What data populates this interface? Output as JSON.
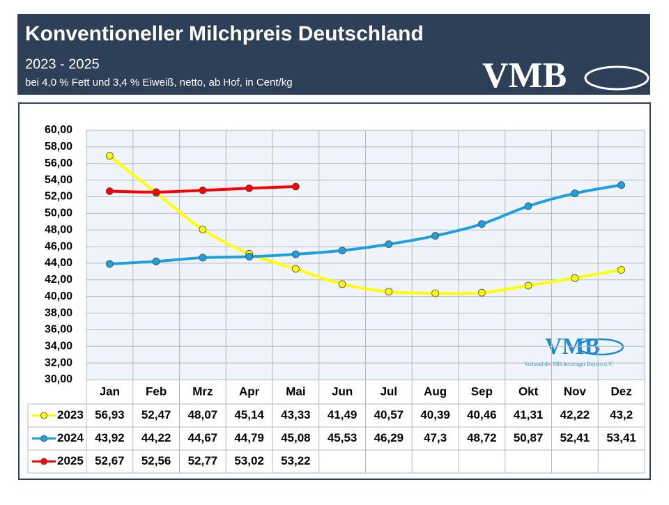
{
  "chart_data": {
    "type": "line",
    "title": "Konventioneller Milchpreis Deutschland",
    "subtitle": "2023 - 2025",
    "note": "bei 4,0 % Fett und 3,4 % Eiweiß, netto, ab Hof, in Cent/kg",
    "logo": "VMB",
    "logo_caption": "Verband der Milcherzeuger Bayern e.V.",
    "categories": [
      "Jan",
      "Feb",
      "Mrz",
      "Apr",
      "Mai",
      "Jun",
      "Jul",
      "Aug",
      "Sep",
      "Okt",
      "Nov",
      "Dez"
    ],
    "series": [
      {
        "name": "2023",
        "color": "#ffff00",
        "values": [
          56.93,
          52.47,
          48.07,
          45.14,
          43.33,
          41.49,
          40.57,
          40.39,
          40.46,
          41.31,
          42.22,
          43.2
        ],
        "value_labels": [
          "56,93",
          "52,47",
          "48,07",
          "45,14",
          "43,33",
          "41,49",
          "40,57",
          "40,39",
          "40,46",
          "41,31",
          "42,22",
          "43,2"
        ]
      },
      {
        "name": "2024",
        "color": "#1ea0e0",
        "values": [
          43.92,
          44.22,
          44.67,
          44.79,
          45.08,
          45.53,
          46.29,
          47.3,
          48.72,
          50.87,
          52.41,
          53.41
        ],
        "value_labels": [
          "43,92",
          "44,22",
          "44,67",
          "44,79",
          "45,08",
          "45,53",
          "46,29",
          "47,3",
          "48,72",
          "50,87",
          "52,41",
          "53,41"
        ]
      },
      {
        "name": "2025",
        "color": "#ff0000",
        "values": [
          52.67,
          52.56,
          52.77,
          53.02,
          53.22,
          null,
          null,
          null,
          null,
          null,
          null,
          null
        ],
        "value_labels": [
          "52,67",
          "52,56",
          "52,77",
          "53,02",
          "53,22",
          null,
          null,
          null,
          null,
          null,
          null,
          null
        ]
      }
    ],
    "ylim": [
      30,
      60
    ],
    "yticks": [
      {
        "value": 30,
        "label": "30,00"
      },
      {
        "value": 32,
        "label": "32,00"
      },
      {
        "value": 34,
        "label": "34,00"
      },
      {
        "value": 36,
        "label": "36,00"
      },
      {
        "value": 38,
        "label": "38,00"
      },
      {
        "value": 40,
        "label": "40,00"
      },
      {
        "value": 42,
        "label": "42,00"
      },
      {
        "value": 44,
        "label": "44,00"
      },
      {
        "value": 46,
        "label": "46,00"
      },
      {
        "value": 48,
        "label": "48,00"
      },
      {
        "value": 50,
        "label": "50,00"
      },
      {
        "value": 52,
        "label": "52,00"
      },
      {
        "value": 54,
        "label": "54,00"
      },
      {
        "value": 56,
        "label": "56,00"
      },
      {
        "value": 58,
        "label": "58,00"
      },
      {
        "value": 60,
        "label": "60,00"
      }
    ],
    "grid": true
  }
}
